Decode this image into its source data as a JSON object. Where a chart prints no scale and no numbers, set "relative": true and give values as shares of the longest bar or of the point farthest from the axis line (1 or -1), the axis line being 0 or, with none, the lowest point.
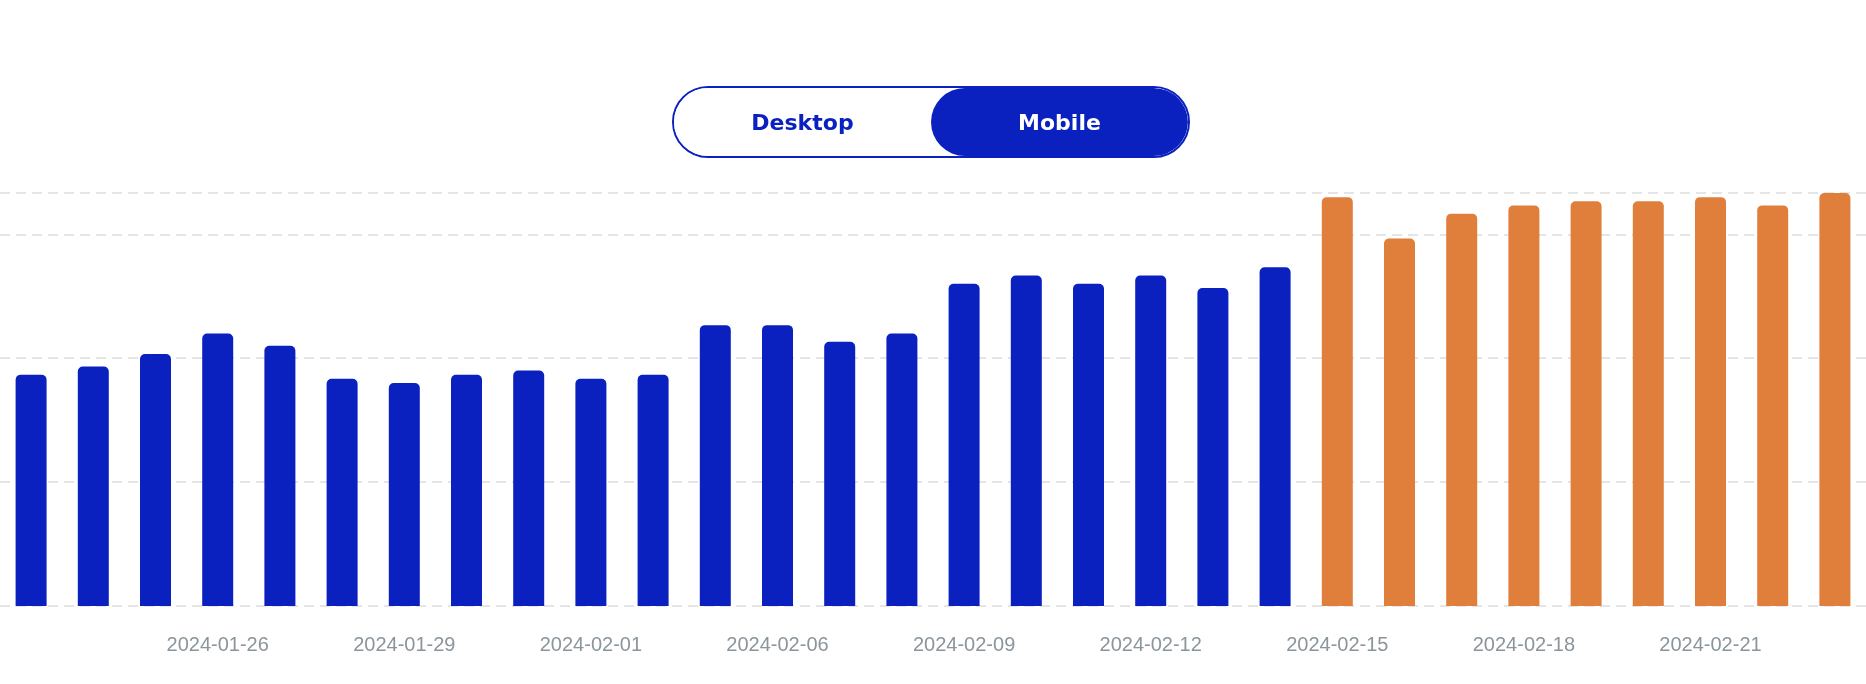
{
  "chart_data": {
    "type": "bar",
    "relative": true,
    "grid": "y",
    "annotations": [
      "Desktop",
      "Mobile"
    ],
    "categories": [
      null,
      null,
      null,
      "2024-01-26",
      null,
      null,
      "2024-01-29",
      null,
      null,
      "2024-02-01",
      null,
      null,
      "2024-02-06",
      null,
      null,
      "2024-02-09",
      null,
      null,
      "2024-02-12",
      null,
      null,
      "2024-02-15",
      null,
      null,
      "2024-02-18",
      null,
      null,
      "2024-02-21",
      null,
      null
    ],
    "values": [
      0.56,
      0.58,
      0.61,
      0.66,
      0.63,
      0.55,
      0.54,
      0.56,
      0.57,
      0.55,
      0.56,
      0.68,
      0.68,
      0.64,
      0.66,
      0.78,
      0.8,
      0.78,
      0.8,
      0.77,
      0.82,
      0.99,
      0.89,
      0.95,
      0.97,
      0.98,
      0.98,
      0.99,
      0.97,
      1
    ],
    "colors": [
      "#0a21c0",
      "#0a21c0",
      "#0a21c0",
      "#0a21c0",
      "#0a21c0",
      "#0a21c0",
      "#0a21c0",
      "#0a21c0",
      "#0a21c0",
      "#0a21c0",
      "#0a21c0",
      "#0a21c0",
      "#0a21c0",
      "#0a21c0",
      "#0a21c0",
      "#0a21c0",
      "#0a21c0",
      "#0a21c0",
      "#0a21c0",
      "#0a21c0",
      "#0a21c0",
      "#e07e3c",
      "#e07e3c",
      "#e07e3c",
      "#e07e3c",
      "#e07e3c",
      "#e07e3c",
      "#e07e3c",
      "#e07e3c",
      "#e07e3c"
    ]
  }
}
